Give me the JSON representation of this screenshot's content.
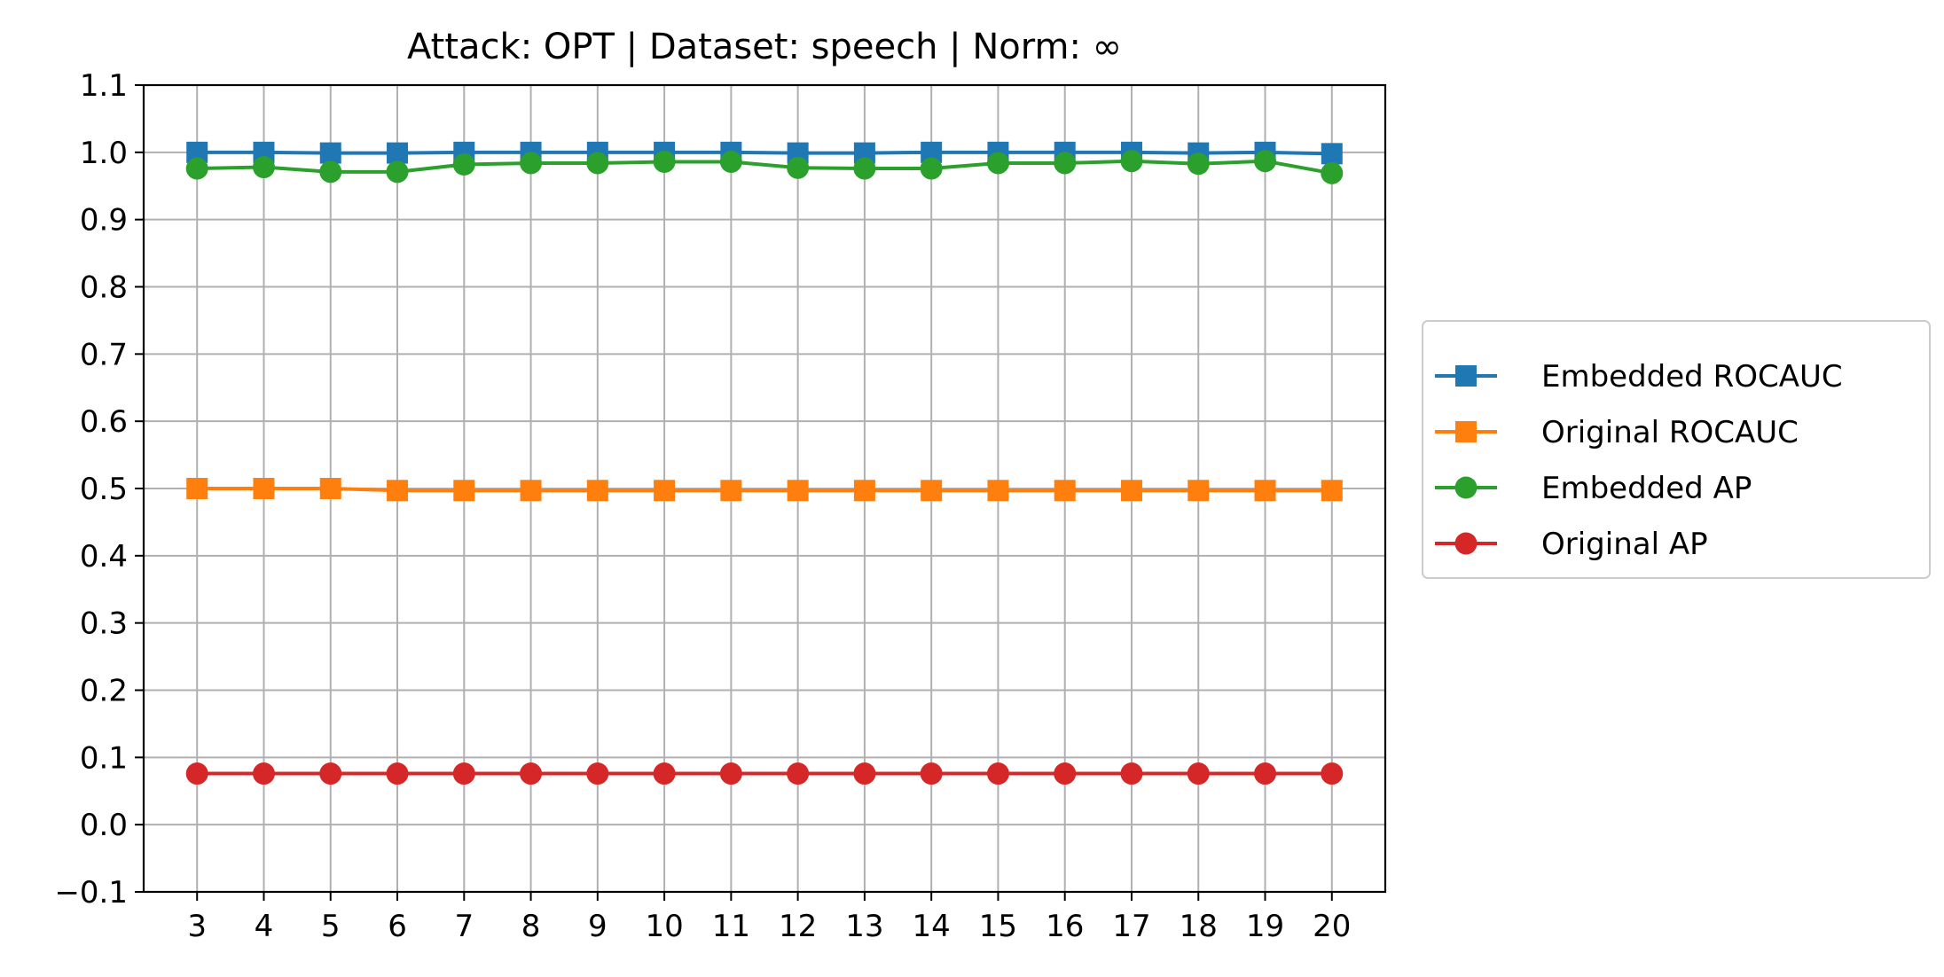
{
  "chart_data": {
    "type": "line",
    "title": "Attack: OPT | Dataset: speech | Norm: ∞",
    "xlabel": "",
    "ylabel": "",
    "x": [
      3,
      4,
      5,
      6,
      7,
      8,
      9,
      10,
      11,
      12,
      13,
      14,
      15,
      16,
      17,
      18,
      19,
      20
    ],
    "x_tick_labels": [
      "3",
      "4",
      "5",
      "6",
      "7",
      "8",
      "9",
      "10",
      "11",
      "12",
      "13",
      "14",
      "15",
      "16",
      "17",
      "18",
      "19",
      "20"
    ],
    "y_ticks": [
      -0.1,
      0.0,
      0.1,
      0.2,
      0.3,
      0.4,
      0.5,
      0.6,
      0.7,
      0.8,
      0.9,
      1.0,
      1.1
    ],
    "y_tick_labels": [
      "−0.1",
      "0.0",
      "0.1",
      "0.2",
      "0.3",
      "0.4",
      "0.5",
      "0.6",
      "0.7",
      "0.8",
      "0.9",
      "1.0",
      "1.1"
    ],
    "ylim": [
      -0.1,
      1.1
    ],
    "xlim": [
      2.2,
      20.8
    ],
    "grid": true,
    "legend_position": "outside-right",
    "series": [
      {
        "name": "Embedded ROCAUC",
        "color": "#1f77b4",
        "marker": "square",
        "values": [
          1.0,
          1.0,
          0.999,
          0.999,
          1.0,
          1.0,
          1.0,
          1.0,
          1.0,
          0.999,
          0.999,
          1.0,
          1.0,
          1.0,
          1.0,
          0.999,
          1.0,
          0.998
        ]
      },
      {
        "name": "Original ROCAUC",
        "color": "#ff7f0e",
        "marker": "square",
        "values": [
          0.5,
          0.5,
          0.5,
          0.497,
          0.497,
          0.497,
          0.497,
          0.497,
          0.497,
          0.497,
          0.497,
          0.497,
          0.497,
          0.497,
          0.497,
          0.497,
          0.497,
          0.497
        ]
      },
      {
        "name": "Embedded AP",
        "color": "#2ca02c",
        "marker": "circle",
        "values": [
          0.976,
          0.978,
          0.971,
          0.971,
          0.982,
          0.984,
          0.984,
          0.986,
          0.986,
          0.977,
          0.976,
          0.976,
          0.984,
          0.984,
          0.987,
          0.983,
          0.987,
          0.969
        ]
      },
      {
        "name": "Original AP",
        "color": "#d62728",
        "marker": "circle",
        "values": [
          0.076,
          0.076,
          0.076,
          0.076,
          0.076,
          0.076,
          0.076,
          0.076,
          0.076,
          0.076,
          0.076,
          0.076,
          0.076,
          0.076,
          0.076,
          0.076,
          0.076,
          0.076
        ]
      }
    ]
  }
}
